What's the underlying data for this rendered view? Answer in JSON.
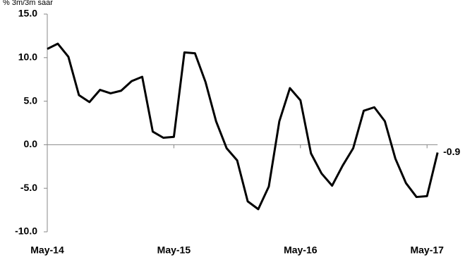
{
  "chart_data": {
    "type": "line",
    "title": "% 3m/3m saar",
    "categories": [
      "May-14",
      null,
      null,
      null,
      null,
      null,
      null,
      null,
      null,
      null,
      null,
      null,
      "May-15",
      null,
      null,
      null,
      null,
      null,
      null,
      null,
      null,
      null,
      null,
      null,
      "May-16",
      null,
      null,
      null,
      null,
      null,
      null,
      null,
      null,
      null,
      null,
      null,
      "May-17",
      null
    ],
    "series": [
      {
        "name": null,
        "color": "#000000",
        "values": [
          11.0,
          11.6,
          10.1,
          5.7,
          4.9,
          6.3,
          5.9,
          6.2,
          7.3,
          7.8,
          1.5,
          0.8,
          0.9,
          10.6,
          10.5,
          7.2,
          2.7,
          -0.4,
          -1.8,
          -6.5,
          -7.4,
          -4.8,
          2.7,
          6.5,
          5.1,
          -1.0,
          -3.3,
          -4.7,
          -2.4,
          -0.4,
          3.9,
          4.3,
          2.7,
          -1.6,
          -4.4,
          -6.0,
          -5.9,
          -0.9
        ]
      }
    ],
    "ylim": [
      -10,
      15
    ],
    "yticks": [
      {
        "value": -10,
        "label": "-10.0"
      },
      {
        "value": -5,
        "label": "-5.0"
      },
      {
        "value": 0,
        "label": "0.0"
      },
      {
        "value": 5,
        "label": "5.0"
      },
      {
        "value": 10,
        "label": "10.0"
      },
      {
        "value": 15,
        "label": "15.0"
      }
    ],
    "grid": false
  }
}
